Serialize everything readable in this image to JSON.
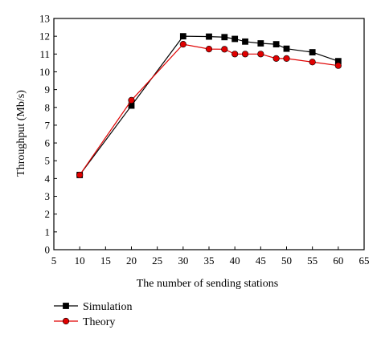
{
  "chart_data": {
    "type": "line",
    "xlabel": "The number of sending stations",
    "ylabel": "Throughput (Mb/s)",
    "xlim": [
      5,
      65
    ],
    "ylim": [
      0,
      13
    ],
    "xticks": [
      5,
      10,
      15,
      20,
      25,
      30,
      35,
      40,
      45,
      50,
      55,
      60,
      65
    ],
    "yticks": [
      0,
      1,
      2,
      3,
      4,
      5,
      6,
      7,
      8,
      9,
      10,
      11,
      12,
      13
    ],
    "grid": false,
    "legend_position": "bottom-left",
    "series": [
      {
        "name": "Simulation",
        "color": "#000000",
        "marker": "square",
        "x": [
          10,
          20,
          30,
          35,
          38,
          40,
          42,
          45,
          48,
          50,
          55,
          60
        ],
        "y": [
          4.2,
          8.1,
          12.0,
          11.98,
          11.95,
          11.85,
          11.7,
          11.6,
          11.55,
          11.3,
          11.1,
          10.6
        ]
      },
      {
        "name": "Theory",
        "color": "#e00000",
        "marker": "circle",
        "x": [
          10,
          20,
          30,
          35,
          38,
          40,
          42,
          45,
          48,
          50,
          55,
          60
        ],
        "y": [
          4.2,
          8.4,
          11.55,
          11.28,
          11.27,
          11.0,
          11.0,
          11.0,
          10.75,
          10.75,
          10.55,
          10.35
        ]
      }
    ]
  }
}
